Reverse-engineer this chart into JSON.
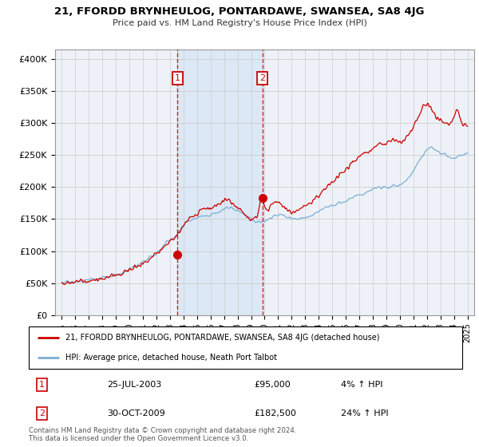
{
  "title": "21, FFORDD BRYNHEULOG, PONTARDAWE, SWANSEA, SA8 4JG",
  "subtitle": "Price paid vs. HM Land Registry's House Price Index (HPI)",
  "yticks": [
    0,
    50000,
    100000,
    150000,
    200000,
    250000,
    300000,
    350000,
    400000
  ],
  "ytick_labels": [
    "£0",
    "£50K",
    "£100K",
    "£150K",
    "£200K",
    "£250K",
    "£300K",
    "£350K",
    "£400K"
  ],
  "ylim": [
    0,
    415000
  ],
  "xlim_start": 1994.5,
  "xlim_end": 2025.5,
  "hpi_color": "#7aaed4",
  "price_color": "#cc0000",
  "bg_color": "#eef2f8",
  "shade_color": "#dce8f5",
  "grid_color": "#cccccc",
  "purchase1_x": 2003.56,
  "purchase1_y": 95000,
  "purchase2_x": 2009.83,
  "purchase2_y": 182500,
  "legend_line1": "21, FFORDD BRYNHEULOG, PONTARDAWE, SWANSEA, SA8 4JG (detached house)",
  "legend_line2": "HPI: Average price, detached house, Neath Port Talbot",
  "annotation1_label": "1",
  "annotation1_date": "25-JUL-2003",
  "annotation1_price": "£95,000",
  "annotation1_hpi": "4% ↑ HPI",
  "annotation2_label": "2",
  "annotation2_date": "30-OCT-2009",
  "annotation2_price": "£182,500",
  "annotation2_hpi": "24% ↑ HPI",
  "footer": "Contains HM Land Registry data © Crown copyright and database right 2024.\nThis data is licensed under the Open Government Licence v3.0.",
  "hpi_knots_x": [
    1995.0,
    1996.0,
    1997.0,
    1998.0,
    1999.0,
    2000.0,
    2001.0,
    2001.5,
    2002.0,
    2002.5,
    2003.0,
    2003.5,
    2004.0,
    2004.5,
    2005.0,
    2005.5,
    2006.0,
    2006.5,
    2007.0,
    2007.5,
    2008.0,
    2008.5,
    2009.0,
    2009.5,
    2010.0,
    2010.5,
    2011.0,
    2011.5,
    2012.0,
    2012.5,
    2013.0,
    2013.5,
    2014.0,
    2014.5,
    2015.0,
    2015.5,
    2016.0,
    2016.5,
    2017.0,
    2017.5,
    2018.0,
    2018.5,
    2019.0,
    2019.5,
    2020.0,
    2020.5,
    2021.0,
    2021.5,
    2022.0,
    2022.5,
    2023.0,
    2023.5,
    2024.0,
    2024.5,
    2025.0
  ],
  "hpi_knots_y": [
    52000,
    53000,
    55000,
    58000,
    63000,
    72000,
    84000,
    90000,
    98000,
    107000,
    116000,
    125000,
    140000,
    148000,
    152000,
    155000,
    157000,
    160000,
    165000,
    168000,
    163000,
    157000,
    150000,
    145000,
    148000,
    152000,
    156000,
    154000,
    150000,
    149000,
    152000,
    156000,
    162000,
    167000,
    170000,
    173000,
    178000,
    183000,
    188000,
    192000,
    196000,
    198000,
    200000,
    202000,
    203000,
    210000,
    225000,
    242000,
    258000,
    260000,
    252000,
    248000,
    245000,
    248000,
    252000
  ],
  "price_knots_x": [
    1995.0,
    1996.0,
    1997.0,
    1998.0,
    1999.0,
    2000.0,
    2001.0,
    2001.5,
    2002.0,
    2002.5,
    2003.0,
    2003.5,
    2004.0,
    2004.5,
    2005.0,
    2005.5,
    2006.0,
    2006.5,
    2007.0,
    2007.25,
    2007.5,
    2007.75,
    2008.0,
    2008.25,
    2008.5,
    2008.75,
    2009.0,
    2009.25,
    2009.5,
    2009.75,
    2010.0,
    2010.5,
    2011.0,
    2011.25,
    2011.5,
    2011.75,
    2012.0,
    2012.5,
    2013.0,
    2013.5,
    2014.0,
    2014.5,
    2015.0,
    2015.5,
    2016.0,
    2016.5,
    2017.0,
    2017.5,
    2018.0,
    2018.5,
    2019.0,
    2019.5,
    2020.0,
    2020.5,
    2021.0,
    2021.5,
    2022.0,
    2022.5,
    2023.0,
    2023.5,
    2024.0,
    2024.25,
    2024.5,
    2024.75,
    2025.0
  ],
  "price_knots_y": [
    50000,
    52000,
    54000,
    57000,
    62000,
    70000,
    82000,
    88000,
    96000,
    105000,
    114000,
    124000,
    142000,
    152000,
    160000,
    165000,
    168000,
    172000,
    178000,
    182000,
    178000,
    172000,
    168000,
    163000,
    158000,
    152000,
    148000,
    152000,
    158000,
    182500,
    168000,
    172000,
    175000,
    172000,
    168000,
    163000,
    160000,
    165000,
    170000,
    178000,
    188000,
    198000,
    208000,
    218000,
    228000,
    238000,
    248000,
    255000,
    260000,
    265000,
    268000,
    272000,
    270000,
    278000,
    295000,
    315000,
    330000,
    315000,
    305000,
    298000,
    310000,
    320000,
    305000,
    298000,
    295000
  ]
}
